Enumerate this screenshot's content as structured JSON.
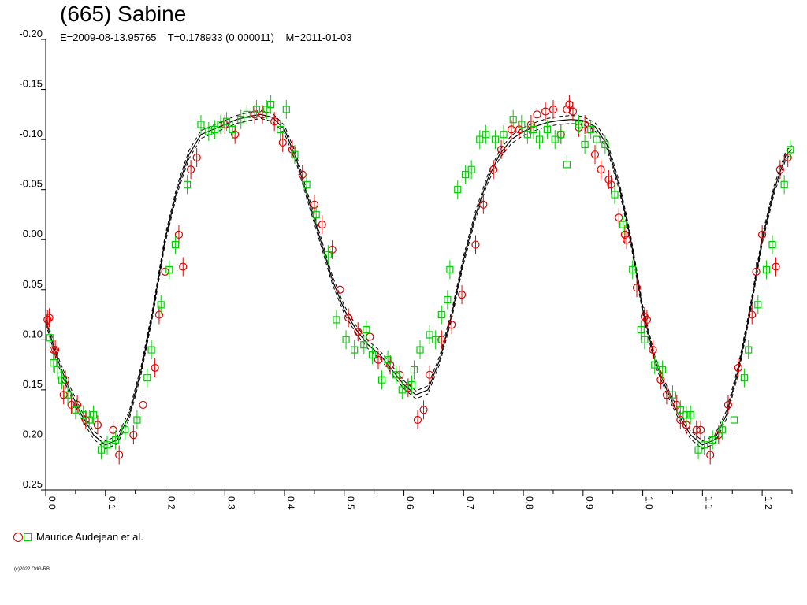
{
  "chart_data": {
    "type": "scatter",
    "title": "(665) Sabine",
    "subtitle": "E=2009-08-13.95765    T=0.178933 (0.000011)    M=2011-01-03",
    "xlabel": "",
    "ylabel": "",
    "xlim": [
      0.0,
      1.25
    ],
    "ylim": [
      -0.2,
      0.25
    ],
    "y_inverted": true,
    "grid": false,
    "y_ticks": [
      "-0.20",
      "-0.15",
      "-0.10",
      "-0.05",
      "0.00",
      "0.05",
      "0.10",
      "0.15",
      "0.20",
      "0.25"
    ],
    "y_tick_values": [
      -0.2,
      -0.15,
      -0.1,
      -0.05,
      0.0,
      0.05,
      0.1,
      0.15,
      0.2,
      0.25
    ],
    "x_ticks": [
      "0.0",
      "0.1",
      "0.2",
      "0.3",
      "0.4",
      "0.5",
      "0.6",
      "0.7",
      "0.8",
      "0.9",
      "1.0",
      "1.1",
      "1.2"
    ],
    "x_tick_values": [
      0.0,
      0.1,
      0.2,
      0.3,
      0.4,
      0.5,
      0.6,
      0.7,
      0.8,
      0.9,
      1.0,
      1.1,
      1.2
    ],
    "fit_curve": {
      "style": "solid with dashed envelope",
      "color": "#000000",
      "envelope": 0.004,
      "x": [
        0.0,
        0.02,
        0.04,
        0.06,
        0.08,
        0.1,
        0.12,
        0.14,
        0.16,
        0.18,
        0.2,
        0.22,
        0.24,
        0.26,
        0.28,
        0.3,
        0.32,
        0.34,
        0.36,
        0.38,
        0.4,
        0.42,
        0.44,
        0.46,
        0.48,
        0.5,
        0.52,
        0.54,
        0.56,
        0.58,
        0.6,
        0.62,
        0.64,
        0.66,
        0.68,
        0.7,
        0.72,
        0.74,
        0.76,
        0.78,
        0.8,
        0.82,
        0.84,
        0.86,
        0.88,
        0.9,
        0.92,
        0.94,
        0.96,
        0.98,
        1.0,
        1.02,
        1.04,
        1.06,
        1.08,
        1.1,
        1.12,
        1.14,
        1.16,
        1.18,
        1.2,
        1.22,
        1.24,
        1.25
      ],
      "y": [
        0.08,
        0.12,
        0.15,
        0.175,
        0.195,
        0.205,
        0.2,
        0.175,
        0.13,
        0.07,
        0.0,
        -0.05,
        -0.085,
        -0.105,
        -0.11,
        -0.115,
        -0.12,
        -0.123,
        -0.125,
        -0.122,
        -0.11,
        -0.08,
        -0.04,
        0.0,
        0.04,
        0.07,
        0.09,
        0.105,
        0.115,
        0.13,
        0.145,
        0.155,
        0.15,
        0.12,
        0.075,
        0.02,
        -0.025,
        -0.06,
        -0.085,
        -0.1,
        -0.108,
        -0.113,
        -0.117,
        -0.119,
        -0.12,
        -0.119,
        -0.113,
        -0.095,
        -0.055,
        0.0,
        0.07,
        0.12,
        0.15,
        0.175,
        0.195,
        0.205,
        0.2,
        0.175,
        0.13,
        0.07,
        0.0,
        -0.05,
        -0.085,
        -0.09
      ]
    },
    "series": [
      {
        "name": "Maurice Audejean et al.",
        "marker": "circle",
        "color": "#e00000",
        "x": [
          0.003,
          0.006,
          0.013,
          0.016,
          0.03,
          0.033,
          0.043,
          0.053,
          0.067,
          0.087,
          0.113,
          0.123,
          0.147,
          0.163,
          0.183,
          0.19,
          0.2,
          0.223,
          0.23,
          0.243,
          0.253,
          0.3,
          0.317,
          0.35,
          0.363,
          0.383,
          0.397,
          0.413,
          0.43,
          0.45,
          0.463,
          0.48,
          0.493,
          0.507,
          0.523,
          0.543,
          0.557,
          0.577,
          0.593,
          0.607,
          0.623,
          0.633,
          0.643,
          0.663,
          0.68,
          0.697,
          0.72,
          0.733,
          0.75,
          0.763,
          0.78,
          0.793,
          0.813,
          0.823,
          0.837,
          0.85,
          0.863,
          0.873,
          0.877,
          0.883,
          0.893,
          0.903,
          0.91,
          0.92,
          0.93,
          0.943,
          0.947,
          0.96,
          0.973,
          0.97,
          0.99,
          1.003,
          1.007,
          1.017,
          1.03,
          1.04,
          1.057,
          1.063,
          1.073,
          1.09,
          1.097,
          1.113,
          1.127,
          1.143,
          1.16,
          1.183,
          1.19,
          1.2,
          1.223,
          1.23,
          1.243
        ],
        "y": [
          0.08,
          0.078,
          0.11,
          0.11,
          0.155,
          0.14,
          0.165,
          0.165,
          0.18,
          0.185,
          0.19,
          0.215,
          0.195,
          0.165,
          0.128,
          0.075,
          0.032,
          -0.005,
          0.027,
          -0.07,
          -0.082,
          -0.115,
          -0.105,
          -0.125,
          -0.125,
          -0.118,
          -0.097,
          -0.09,
          -0.065,
          -0.035,
          -0.015,
          0.01,
          0.05,
          0.078,
          0.092,
          0.097,
          0.12,
          0.125,
          0.135,
          0.148,
          0.18,
          0.17,
          0.135,
          0.1,
          0.085,
          0.055,
          0.005,
          -0.035,
          -0.07,
          -0.09,
          -0.11,
          -0.11,
          -0.115,
          -0.125,
          -0.128,
          -0.13,
          -0.105,
          -0.13,
          -0.135,
          -0.128,
          -0.112,
          -0.115,
          -0.11,
          -0.085,
          -0.07,
          -0.06,
          -0.055,
          -0.022,
          0.0,
          -0.005,
          0.048,
          0.077,
          0.08,
          0.11,
          0.14,
          0.155,
          0.165,
          0.18,
          0.185,
          0.19,
          0.19,
          0.215,
          0.195,
          0.165,
          0.128,
          0.075,
          0.032,
          -0.005,
          0.027,
          -0.07,
          -0.082
        ]
      },
      {
        "name": "Maurice Audejean et al.",
        "marker": "square",
        "color": "#00d000",
        "x": [
          0.007,
          0.013,
          0.02,
          0.027,
          0.037,
          0.05,
          0.063,
          0.073,
          0.08,
          0.093,
          0.103,
          0.117,
          0.133,
          0.153,
          0.17,
          0.177,
          0.193,
          0.207,
          0.217,
          0.237,
          0.26,
          0.273,
          0.283,
          0.293,
          0.303,
          0.313,
          0.327,
          0.337,
          0.353,
          0.37,
          0.377,
          0.393,
          0.403,
          0.417,
          0.437,
          0.453,
          0.473,
          0.487,
          0.503,
          0.517,
          0.533,
          0.537,
          0.547,
          0.563,
          0.573,
          0.587,
          0.597,
          0.613,
          0.617,
          0.627,
          0.643,
          0.653,
          0.663,
          0.673,
          0.677,
          0.69,
          0.703,
          0.713,
          0.727,
          0.737,
          0.753,
          0.767,
          0.783,
          0.797,
          0.807,
          0.817,
          0.827,
          0.84,
          0.853,
          0.863,
          0.873,
          0.893,
          0.903,
          0.913,
          0.923,
          0.937,
          0.953,
          0.967,
          0.983,
          0.997,
          1.003,
          1.02,
          1.033,
          1.05,
          1.063,
          1.073,
          1.08,
          1.093,
          1.103,
          1.117,
          1.133,
          1.153,
          1.17,
          1.177,
          1.193,
          1.207,
          1.217,
          1.237,
          1.247
        ],
        "y": [
          0.098,
          0.123,
          0.13,
          0.14,
          0.155,
          0.17,
          0.175,
          0.18,
          0.175,
          0.21,
          0.205,
          0.2,
          0.19,
          0.18,
          0.138,
          0.11,
          0.065,
          0.03,
          0.005,
          -0.055,
          -0.115,
          -0.108,
          -0.11,
          -0.115,
          -0.118,
          -0.11,
          -0.12,
          -0.125,
          -0.13,
          -0.13,
          -0.135,
          -0.11,
          -0.13,
          -0.085,
          -0.055,
          -0.025,
          0.015,
          0.08,
          0.1,
          0.11,
          0.105,
          0.09,
          0.115,
          0.14,
          0.12,
          0.135,
          0.15,
          0.145,
          0.13,
          0.11,
          0.095,
          0.1,
          0.075,
          0.06,
          0.03,
          -0.05,
          -0.065,
          -0.07,
          -0.1,
          -0.105,
          -0.1,
          -0.105,
          -0.12,
          -0.115,
          -0.105,
          -0.11,
          -0.1,
          -0.11,
          -0.1,
          -0.105,
          -0.075,
          -0.115,
          -0.095,
          -0.11,
          -0.1,
          -0.095,
          -0.045,
          -0.015,
          0.03,
          0.09,
          0.1,
          0.125,
          0.13,
          0.155,
          0.17,
          0.175,
          0.175,
          0.21,
          0.205,
          0.2,
          0.19,
          0.18,
          0.138,
          0.11,
          0.065,
          0.03,
          0.005,
          -0.055,
          -0.09
        ]
      }
    ],
    "legend": {
      "label": "Maurice Audejean et al.",
      "position": "bottom-left"
    },
    "copyright": "(c)2022 OdG-RB"
  }
}
